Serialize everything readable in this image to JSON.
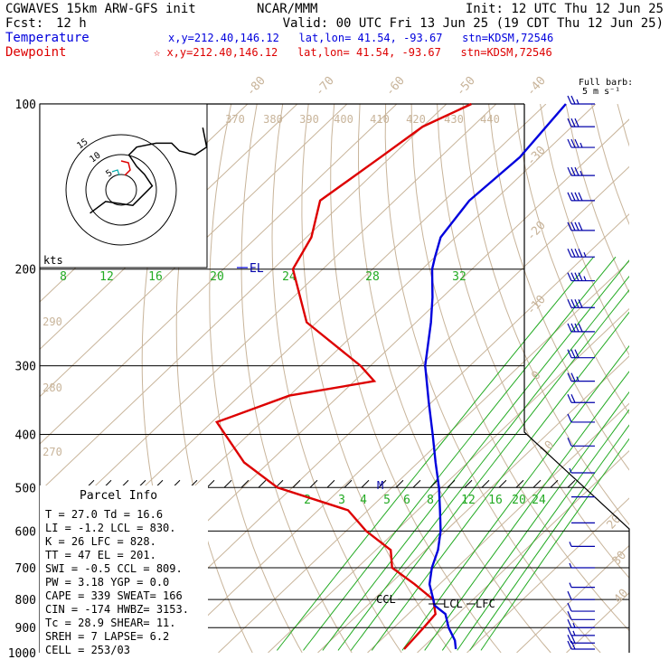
{
  "header": {
    "model": "CGWAVES 15km ARW-GFS init",
    "org": "NCAR/MMM",
    "init": "Init: 12 UTC Thu 12 Jun 25",
    "fcst_label": "Fcst:",
    "fcst_value": "12 h",
    "valid": "Valid: 00 UTC Fri 13 Jun 25 (19 CDT Thu 12 Jun 25)",
    "temp_label": "Temperature",
    "temp_loc": "x,y=212.40,146.12   lat,lon= 41.54, -93.67   stn=KDSM,72546",
    "dew_label": "Dewpoint",
    "dew_loc": "☆ x,y=212.40,146.12   lat,lon= 41.54, -93.67   stn=KDSM,72546"
  },
  "colors": {
    "temperature": "#0000dd",
    "dewpoint": "#dd0000",
    "isotherm": "#c8b49a",
    "mixing_ratio": "#22aa22",
    "barb": "#0000aa",
    "frame": "#000000"
  },
  "barb_legend": {
    "title": "Full barb:",
    "unit": "5 m s⁻¹"
  },
  "hodograph": {
    "units": "kts",
    "ring_labels": [
      "5",
      "10",
      "15"
    ],
    "trace": [
      [
        -8,
        -6
      ],
      [
        -4,
        -3
      ],
      [
        3,
        -4
      ],
      [
        6,
        -1
      ],
      [
        8,
        1
      ],
      [
        6,
        4
      ],
      [
        4,
        6
      ],
      [
        2,
        9
      ],
      [
        4,
        11
      ],
      [
        9,
        12
      ],
      [
        13,
        12
      ],
      [
        15,
        10
      ],
      [
        19,
        9
      ],
      [
        22,
        11
      ],
      [
        21,
        16
      ]
    ]
  },
  "panel": {
    "title": "Parcel Info",
    "rows": [
      "T   =   27.0  Td =  16.6",
      "LI  =   -1.2  LCL =  830.",
      "K   =    26   LFC =  828.",
      "TT  =    47   EL  =  201.",
      "SWI =   -0.5  CCL =  809.",
      "PW  =  3.18   YGP =   0.0",
      "CAPE =   339  SWEAT=   166",
      "CIN  =  -174  HWBZ= 3153.",
      "Tc   =  28.9  SHEAR=  11.",
      "SREH =     7  LAPSE=   6.2",
      "CELL = 253/03"
    ]
  },
  "level_labels": {
    "el": "EL",
    "m": "M",
    "ccl": "CCL",
    "lcl": "LCL",
    "lfc": "LFC"
  },
  "chart_data": {
    "type": "line",
    "title": "",
    "xlabel": "",
    "ylabel": "",
    "pressure_levels": [
      100,
      200,
      300,
      400,
      500,
      600,
      700,
      800,
      900,
      1000
    ],
    "pressure_tick_labels": [
      "100",
      "200",
      "300",
      "400",
      "500",
      "600",
      "700",
      "800",
      "900",
      "1000"
    ],
    "isotherm_labels": [
      "-80",
      "-70",
      "-60",
      "-50",
      "-40",
      "-30",
      "-20",
      "-10",
      "0",
      "10",
      "20",
      "30",
      "40"
    ],
    "theta_labels": [
      "370",
      "380",
      "390",
      "400",
      "410",
      "420",
      "430",
      "440",
      "290",
      "280",
      "270"
    ],
    "mixing_ratio_upper": [
      "8",
      "12",
      "16",
      "20",
      "24",
      "28",
      "32"
    ],
    "mixing_ratio_lower": [
      "2",
      "3",
      "4",
      "5",
      "6",
      "8",
      "12",
      "16",
      "20",
      "24"
    ],
    "series": [
      {
        "name": "Temperature",
        "p": [
          100,
          125,
          150,
          175,
          190,
          200,
          225,
          250,
          300,
          350,
          400,
          450,
          500,
          550,
          600,
          650,
          700,
          750,
          800,
          820,
          850,
          900,
          950,
          985
        ],
        "t": [
          -66,
          -64,
          -65,
          -63,
          -60,
          -58,
          -52,
          -47,
          -39,
          -30.5,
          -23,
          -16.5,
          -10.5,
          -5.5,
          -1,
          2.5,
          5,
          8,
          12,
          13.5,
          17.5,
          21,
          25,
          27
        ]
      },
      {
        "name": "Dewpoint",
        "p": [
          100,
          110,
          125,
          150,
          175,
          200,
          250,
          300,
          320,
          340,
          380,
          450,
          500,
          550,
          600,
          650,
          700,
          750,
          800,
          850,
          900,
          985
        ],
        "t": [
          -85,
          -90,
          -92,
          -95,
          -89,
          -86,
          -72,
          -52,
          -46,
          -60,
          -69,
          -55,
          -43,
          -24,
          -16,
          -7,
          -3,
          5,
          12,
          15.5,
          16,
          16.6
        ]
      }
    ],
    "wind_barbs": [
      {
        "p": 100,
        "kt": 28
      },
      {
        "p": 110,
        "kt": 32
      },
      {
        "p": 120,
        "kt": 36
      },
      {
        "p": 135,
        "kt": 38
      },
      {
        "p": 150,
        "kt": 42
      },
      {
        "p": 170,
        "kt": 44
      },
      {
        "p": 190,
        "kt": 46
      },
      {
        "p": 210,
        "kt": 46
      },
      {
        "p": 235,
        "kt": 44
      },
      {
        "p": 260,
        "kt": 40
      },
      {
        "p": 290,
        "kt": 34
      },
      {
        "p": 320,
        "kt": 28
      },
      {
        "p": 350,
        "kt": 20
      },
      {
        "p": 380,
        "kt": 14
      },
      {
        "p": 420,
        "kt": 10
      },
      {
        "p": 470,
        "kt": 6
      },
      {
        "p": 520,
        "kt": 4
      },
      {
        "p": 580,
        "kt": 4
      },
      {
        "p": 640,
        "kt": 6
      },
      {
        "p": 700,
        "kt": 6
      },
      {
        "p": 760,
        "kt": 8
      },
      {
        "p": 800,
        "kt": 10
      },
      {
        "p": 840,
        "kt": 12
      },
      {
        "p": 870,
        "kt": 14
      },
      {
        "p": 900,
        "kt": 16
      },
      {
        "p": 930,
        "kt": 18
      },
      {
        "p": 960,
        "kt": 20
      },
      {
        "p": 985,
        "kt": 20
      }
    ]
  }
}
